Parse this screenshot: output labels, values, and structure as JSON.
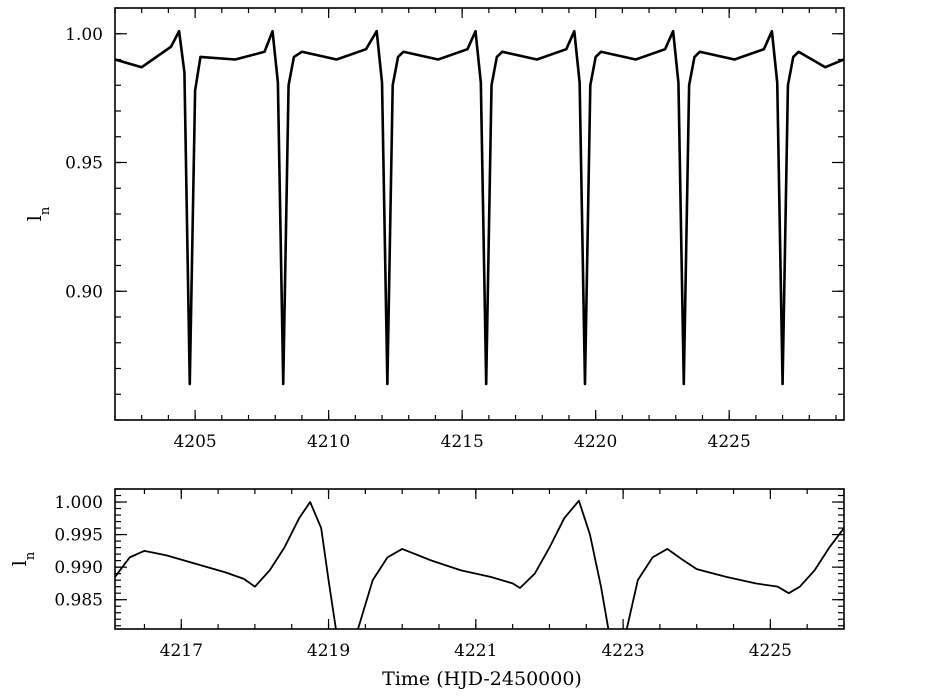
{
  "chart_data": [
    {
      "type": "line",
      "title": "",
      "xlabel": "",
      "ylabel": "l_n",
      "ylabel_main": "l",
      "ylabel_sub": "n",
      "xlim": [
        4202.0,
        4229.3
      ],
      "ylim": [
        0.85,
        1.01
      ],
      "grid": false,
      "legend": "none",
      "x_ticks": [
        4205,
        4210,
        4215,
        4220,
        4225
      ],
      "x_tick_labels": [
        "4205",
        "4210",
        "4215",
        "4220",
        "4225"
      ],
      "y_ticks": [
        0.9,
        0.95,
        1.0
      ],
      "y_tick_labels": [
        "0.90",
        "0.95",
        "1.00"
      ],
      "series": [
        {
          "x": [
            4202.0,
            4203.0,
            4204.1,
            4204.4,
            4204.6,
            4204.8,
            4205.0,
            4205.2,
            4206.5,
            4207.6,
            4207.9,
            4208.1,
            4208.3,
            4208.5,
            4208.7,
            4209.0,
            4210.3,
            4211.4,
            4211.8,
            4212.0,
            4212.2,
            4212.4,
            4212.6,
            4212.8,
            4214.1,
            4215.2,
            4215.5,
            4215.7,
            4215.9,
            4216.1,
            4216.3,
            4216.5,
            4217.8,
            4218.9,
            4219.2,
            4219.4,
            4219.6,
            4219.8,
            4220.0,
            4220.2,
            4221.5,
            4222.6,
            4222.9,
            4223.1,
            4223.3,
            4223.5,
            4223.7,
            4223.9,
            4225.2,
            4226.3,
            4226.6,
            4226.8,
            4227.0,
            4227.2,
            4227.4,
            4227.6,
            4228.6,
            4229.3
          ],
          "y": [
            0.99,
            0.987,
            0.995,
            1.001,
            0.985,
            0.864,
            0.978,
            0.991,
            0.99,
            0.993,
            1.001,
            0.981,
            0.864,
            0.98,
            0.991,
            0.993,
            0.99,
            0.994,
            1.001,
            0.981,
            0.864,
            0.98,
            0.991,
            0.993,
            0.99,
            0.994,
            1.001,
            0.981,
            0.864,
            0.98,
            0.991,
            0.993,
            0.99,
            0.994,
            1.001,
            0.981,
            0.864,
            0.98,
            0.991,
            0.993,
            0.99,
            0.994,
            1.001,
            0.981,
            0.864,
            0.98,
            0.991,
            0.993,
            0.99,
            0.994,
            1.001,
            0.981,
            0.864,
            0.98,
            0.991,
            0.993,
            0.987,
            0.99
          ]
        }
      ]
    },
    {
      "type": "line",
      "title": "",
      "xlabel": "Time (HJD-2450000)",
      "ylabel": "l_n",
      "ylabel_main": "l",
      "ylabel_sub": "n",
      "xlim": [
        4216.1,
        4226.0
      ],
      "ylim": [
        0.9805,
        1.002
      ],
      "grid": false,
      "legend": "none",
      "x_ticks": [
        4217,
        4219,
        4221,
        4223,
        4225
      ],
      "x_tick_labels": [
        "4217",
        "4219",
        "4221",
        "4223",
        "4225"
      ],
      "y_ticks": [
        0.985,
        0.99,
        0.995,
        1.0
      ],
      "y_tick_labels": [
        "0.985",
        "0.990",
        "0.995",
        "1.000"
      ],
      "series": [
        {
          "x": [
            4216.1,
            4216.3,
            4216.5,
            4216.8,
            4217.2,
            4217.6,
            4217.85,
            4218.0,
            4218.2,
            4218.4,
            4218.6,
            4218.75,
            4218.9,
            4219.0,
            4219.1,
            4219.2,
            4219.4,
            4219.6,
            4219.8,
            4220.0,
            4220.4,
            4220.8,
            4221.2,
            4221.5,
            4221.6,
            4221.8,
            4222.0,
            4222.2,
            4222.4,
            4222.55,
            4222.7,
            4222.8,
            4222.9,
            4223.05,
            4223.2,
            4223.4,
            4223.6,
            4223.8,
            4224.0,
            4224.4,
            4224.8,
            4225.1,
            4225.25,
            4225.4,
            4225.6,
            4225.8,
            4226.0
          ],
          "y": [
            0.9885,
            0.9915,
            0.9925,
            0.9918,
            0.9905,
            0.9892,
            0.9882,
            0.987,
            0.9895,
            0.993,
            0.9975,
            1.0,
            0.996,
            0.988,
            0.9805,
            0.973,
            0.9805,
            0.988,
            0.9915,
            0.9928,
            0.991,
            0.9895,
            0.9885,
            0.9875,
            0.9868,
            0.989,
            0.993,
            0.9975,
            1.0002,
            0.995,
            0.987,
            0.9805,
            0.972,
            0.9805,
            0.988,
            0.9915,
            0.9928,
            0.9912,
            0.9897,
            0.9885,
            0.9875,
            0.987,
            0.986,
            0.987,
            0.9895,
            0.993,
            0.996
          ]
        }
      ]
    }
  ]
}
